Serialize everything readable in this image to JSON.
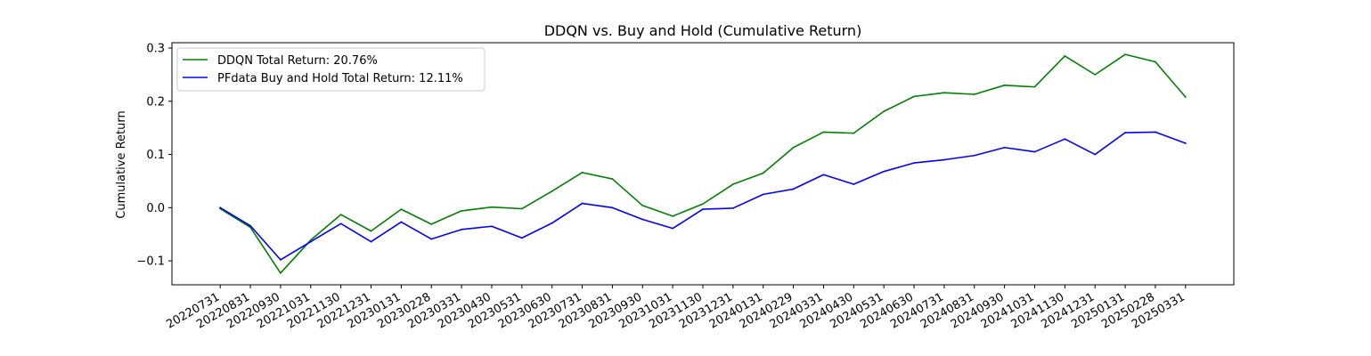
{
  "chart_data": {
    "type": "line",
    "title": "DDQN vs. Buy and Hold (Cumulative Return)",
    "xlabel": "",
    "ylabel": "Cumulative Return",
    "ylim": [
      -0.145,
      0.31
    ],
    "yticks": [
      -0.1,
      0.0,
      0.1,
      0.2,
      0.3
    ],
    "ytick_labels": [
      "−0.1",
      "0.0",
      "0.1",
      "0.2",
      "0.3"
    ],
    "grid": false,
    "legend_position": "upper-left",
    "categories": [
      "20220731",
      "20220831",
      "20220930",
      "20221031",
      "20221130",
      "20221231",
      "20230131",
      "20230228",
      "20230331",
      "20230430",
      "20230531",
      "20230630",
      "20230731",
      "20230831",
      "20230930",
      "20231031",
      "20231130",
      "20231231",
      "20240131",
      "20240229",
      "20240331",
      "20240430",
      "20240531",
      "20240630",
      "20240731",
      "20240831",
      "20240930",
      "20241031",
      "20241130",
      "20241231",
      "20250131",
      "20250228",
      "20250331"
    ],
    "series": [
      {
        "name": "DDQN Total Return: 20.76%",
        "color": "#008000",
        "values": [
          -0.002,
          -0.037,
          -0.123,
          -0.061,
          -0.013,
          -0.044,
          -0.003,
          -0.031,
          -0.006,
          0.001,
          -0.002,
          0.031,
          0.066,
          0.054,
          0.004,
          -0.016,
          0.007,
          0.044,
          0.065,
          0.113,
          0.142,
          0.14,
          0.181,
          0.209,
          0.216,
          0.213,
          0.23,
          0.227,
          0.285,
          0.25,
          0.288,
          0.274,
          0.208
        ]
      },
      {
        "name": "PFdata Buy and Hold Total Return: 12.11%",
        "color": "#0000ff",
        "values": [
          0.0,
          -0.034,
          -0.098,
          -0.064,
          -0.03,
          -0.064,
          -0.027,
          -0.059,
          -0.041,
          -0.035,
          -0.057,
          -0.029,
          0.008,
          0.0,
          -0.022,
          -0.039,
          -0.003,
          -0.001,
          0.025,
          0.035,
          0.062,
          0.044,
          0.068,
          0.084,
          0.09,
          0.098,
          0.113,
          0.105,
          0.129,
          0.1,
          0.141,
          0.142,
          0.121
        ]
      }
    ]
  }
}
